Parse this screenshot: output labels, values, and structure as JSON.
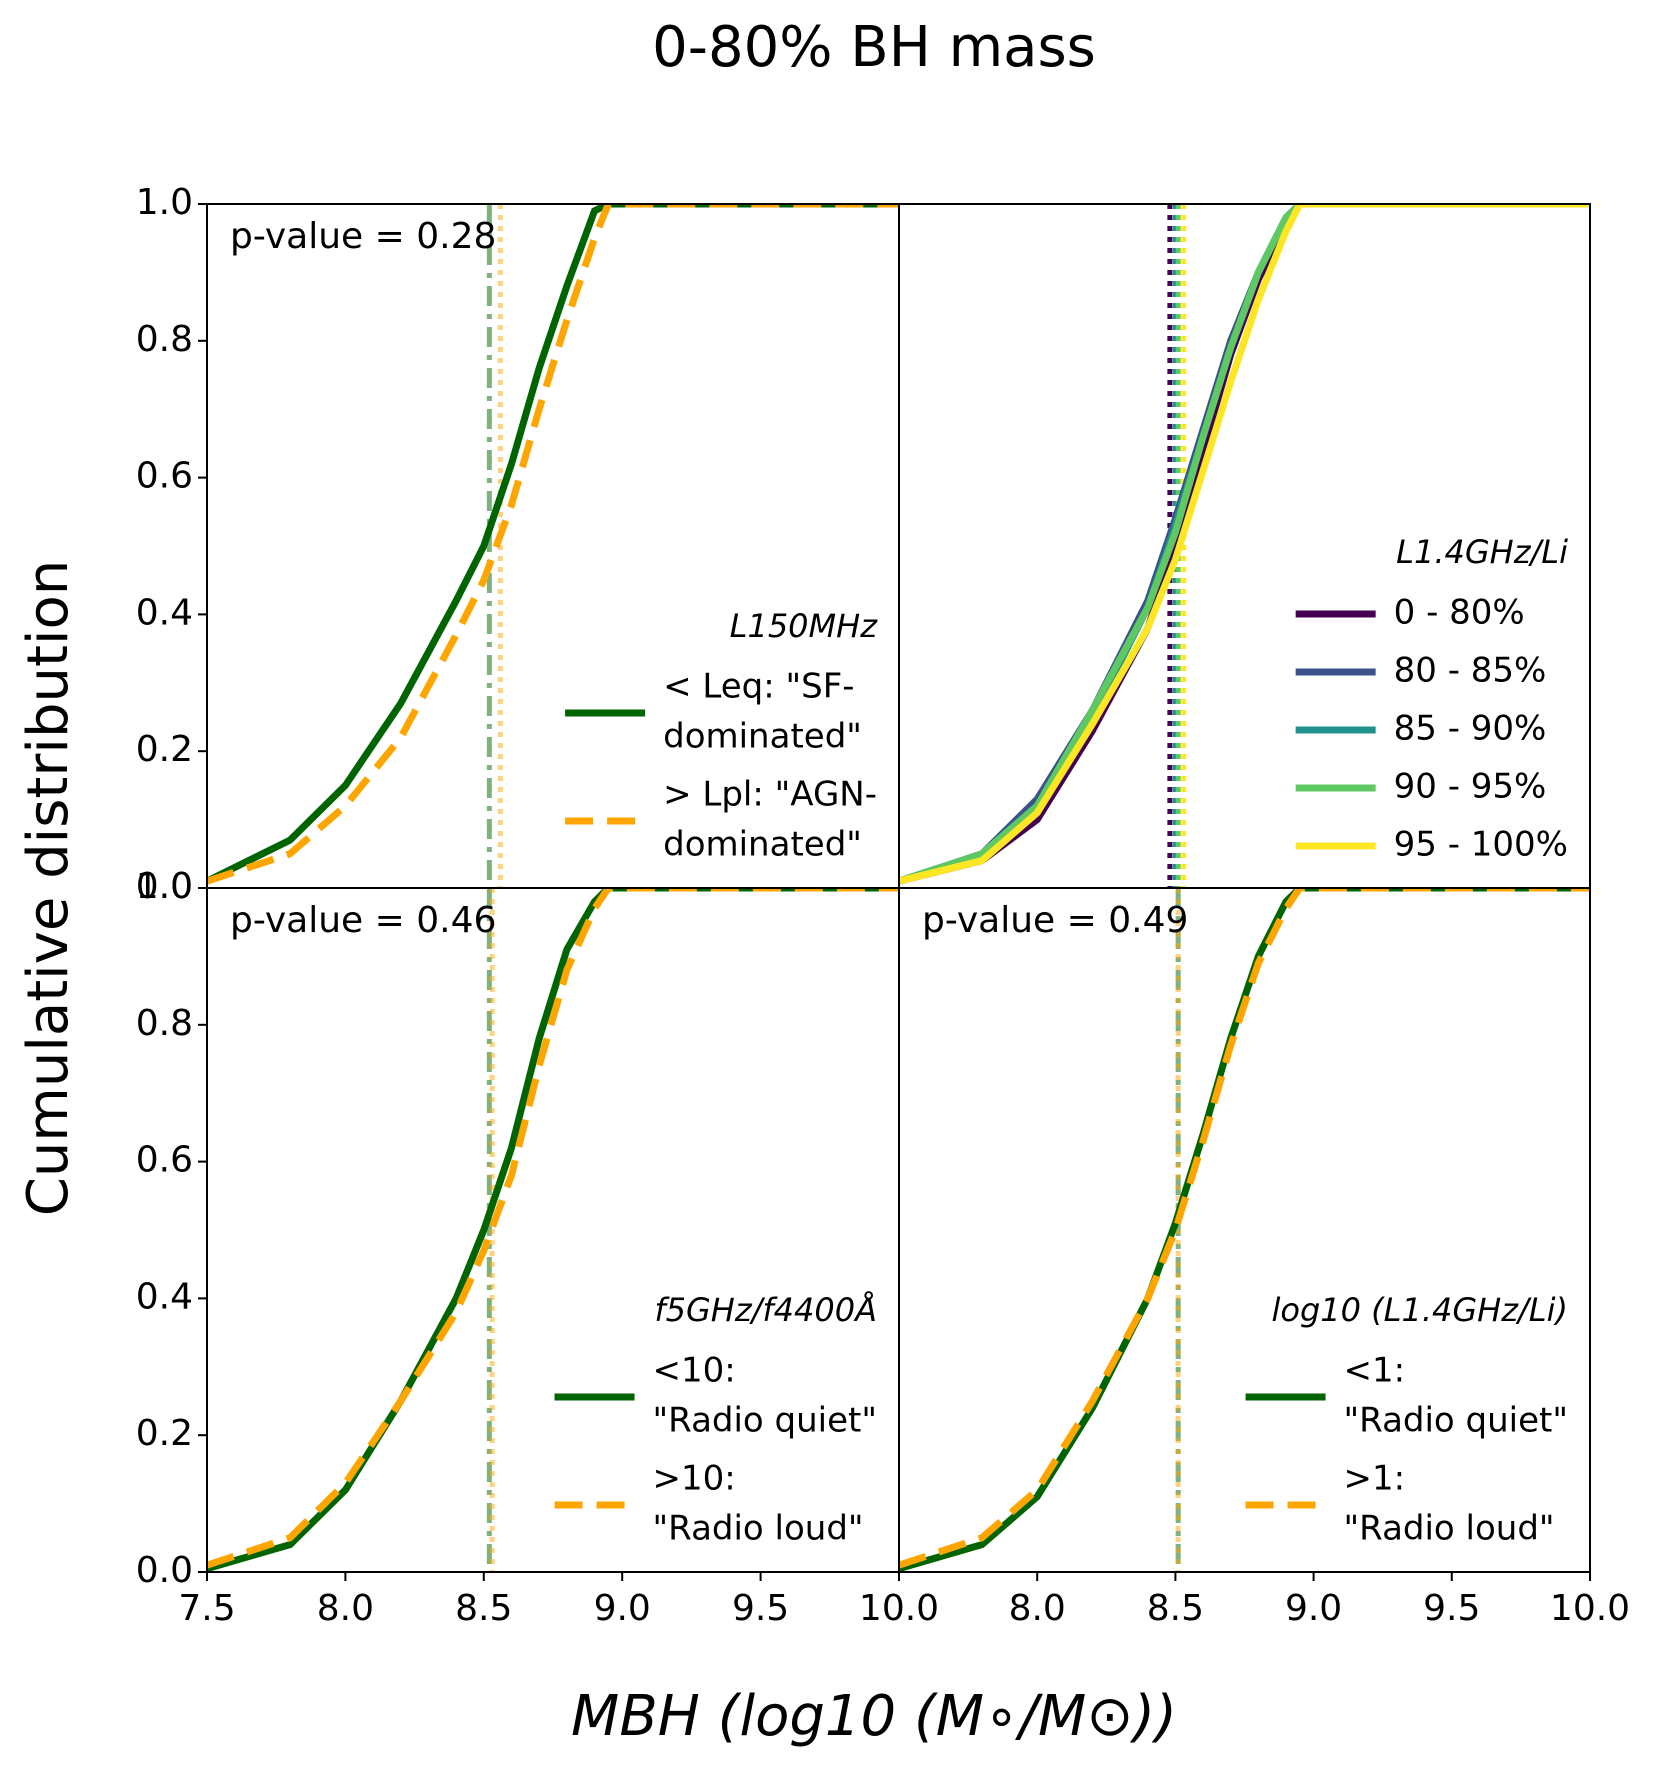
{
  "figure": {
    "title": "0-80% BH mass",
    "xlabel": "MBH (log10 (M∘/M⊙))",
    "ylabel": "Cumulative distribution"
  },
  "chart_data": [
    {
      "type": "line",
      "panel": "top-left",
      "annotation": "p-value = 0.28",
      "legend_title": "L150MHz",
      "legend": "lower right",
      "x": [
        7.5,
        7.8,
        8.0,
        8.2,
        8.4,
        8.5,
        8.6,
        8.7,
        8.8,
        8.9,
        8.95,
        10.0
      ],
      "xlim": [
        7.5,
        10.0
      ],
      "ylim": [
        0,
        1
      ],
      "yticks": [
        {
          "value": 0,
          "label": "0.0"
        },
        0.2,
        0.4,
        0.6,
        0.8,
        {
          "value": 1,
          "label": "1.0"
        }
      ],
      "series": [
        {
          "name": [
            "< Leq: \"SF-",
            "dominated\""
          ],
          "color": "#006400",
          "style": "solid",
          "values": [
            0.01,
            0.07,
            0.15,
            0.27,
            0.42,
            0.5,
            0.62,
            0.76,
            0.88,
            0.99,
            1.0,
            1.0
          ]
        },
        {
          "name": [
            "> Lpl: \"AGN-",
            "dominated\""
          ],
          "color": "#ffa500",
          "style": "dashed",
          "values": [
            0.01,
            0.05,
            0.12,
            0.22,
            0.37,
            0.45,
            0.56,
            0.7,
            0.83,
            0.95,
            1.0,
            1.0
          ]
        }
      ],
      "vlines": [
        {
          "value": 8.52,
          "color": "#006400",
          "style": "dashdot",
          "alpha": 0.5
        },
        {
          "value": 8.56,
          "color": "#ffa500",
          "style": "dotted",
          "alpha": 0.5
        }
      ]
    },
    {
      "type": "line",
      "panel": "top-right",
      "legend_title": "L1.4GHz/Li",
      "legend": "lower right",
      "x": [
        7.5,
        7.8,
        8.0,
        8.2,
        8.4,
        8.5,
        8.6,
        8.7,
        8.8,
        8.9,
        8.95,
        10.0
      ],
      "xlim": [
        7.5,
        10.0
      ],
      "ylim": [
        0,
        1
      ],
      "series": [
        {
          "name": [
            "0 - 80%"
          ],
          "color": "#440154",
          "style": "solid",
          "values": [
            0.01,
            0.04,
            0.1,
            0.23,
            0.38,
            0.5,
            0.64,
            0.78,
            0.89,
            0.97,
            1.0,
            1.0
          ]
        },
        {
          "name": [
            "80 - 85%"
          ],
          "color": "#3b528b",
          "style": "solid",
          "values": [
            0.01,
            0.05,
            0.13,
            0.26,
            0.42,
            0.54,
            0.67,
            0.8,
            0.9,
            0.98,
            1.0,
            1.0
          ]
        },
        {
          "name": [
            "85 - 90%"
          ],
          "color": "#21918c",
          "style": "solid",
          "values": [
            0.01,
            0.05,
            0.12,
            0.25,
            0.41,
            0.53,
            0.66,
            0.79,
            0.9,
            0.98,
            1.0,
            1.0
          ]
        },
        {
          "name": [
            "90 - 95%"
          ],
          "color": "#5ec962",
          "style": "solid",
          "values": [
            0.01,
            0.05,
            0.12,
            0.26,
            0.41,
            0.52,
            0.66,
            0.79,
            0.9,
            0.98,
            1.0,
            1.0
          ]
        },
        {
          "name": [
            "95 - 100%"
          ],
          "color": "#fde725",
          "style": "solid",
          "values": [
            0.01,
            0.04,
            0.11,
            0.24,
            0.38,
            0.48,
            0.61,
            0.74,
            0.86,
            0.96,
            1.0,
            1.0
          ]
        }
      ],
      "vlines": [
        {
          "value": 8.48,
          "color": "#440154",
          "style": "dotted",
          "alpha": 1
        },
        {
          "value": 8.5,
          "color": "#3b528b",
          "style": "dotted",
          "alpha": 1
        },
        {
          "value": 8.5,
          "color": "#21918c",
          "style": "dotted",
          "alpha": 1
        },
        {
          "value": 8.51,
          "color": "#5ec962",
          "style": "dotted",
          "alpha": 1
        },
        {
          "value": 8.53,
          "color": "#fde725",
          "style": "dotted",
          "alpha": 1
        }
      ]
    },
    {
      "type": "line",
      "panel": "bottom-left",
      "annotation": "p-value = 0.46",
      "legend_title": "f5GHz/f4400Å",
      "legend": "lower right",
      "x": [
        7.5,
        7.8,
        8.0,
        8.2,
        8.4,
        8.5,
        8.6,
        8.7,
        8.8,
        8.9,
        8.95,
        10.0
      ],
      "xlim": [
        7.5,
        10.0
      ],
      "ylim": [
        0,
        1
      ],
      "xticks": [
        7.5,
        {
          "value": 8,
          "label": "8.0"
        },
        8.5,
        {
          "value": 9,
          "label": "9.0"
        },
        9.5,
        {
          "value": 10,
          "label": "10.0"
        }
      ],
      "yticks": [
        {
          "value": 0,
          "label": "0.0"
        },
        0.2,
        0.4,
        0.6,
        0.8,
        {
          "value": 1,
          "label": "1.0"
        }
      ],
      "series": [
        {
          "name": [
            "<10:",
            "\"Radio quiet\""
          ],
          "color": "#006400",
          "style": "solid",
          "values": [
            0.005,
            0.04,
            0.12,
            0.25,
            0.4,
            0.5,
            0.62,
            0.78,
            0.91,
            0.98,
            1.0,
            1.0
          ]
        },
        {
          "name": [
            ">10:",
            "\"Radio loud\""
          ],
          "color": "#ffa500",
          "style": "dashed",
          "values": [
            0.01,
            0.05,
            0.13,
            0.25,
            0.38,
            0.47,
            0.58,
            0.74,
            0.88,
            0.97,
            1.0,
            1.0
          ]
        }
      ],
      "vlines": [
        {
          "value": 8.52,
          "color": "#006400",
          "style": "dashdot",
          "alpha": 0.5
        },
        {
          "value": 8.53,
          "color": "#ffa500",
          "style": "dotted",
          "alpha": 0.5
        }
      ]
    },
    {
      "type": "line",
      "panel": "bottom-right",
      "annotation": "p-value = 0.49",
      "legend_title": "log10 (L1.4GHz/Li)",
      "legend": "lower right",
      "x": [
        7.5,
        7.8,
        8.0,
        8.2,
        8.4,
        8.5,
        8.6,
        8.7,
        8.8,
        8.9,
        8.95,
        10.0
      ],
      "xlim": [
        7.5,
        10.0
      ],
      "ylim": [
        0,
        1
      ],
      "xticks": [
        {
          "value": 8,
          "label": "8.0"
        },
        8.5,
        {
          "value": 9,
          "label": "9.0"
        },
        9.5,
        {
          "value": 10,
          "label": "10.0"
        }
      ],
      "series": [
        {
          "name": [
            "<1:",
            "\"Radio quiet\""
          ],
          "color": "#006400",
          "style": "solid",
          "values": [
            0.005,
            0.04,
            0.11,
            0.24,
            0.4,
            0.51,
            0.64,
            0.78,
            0.9,
            0.98,
            1.0,
            1.0
          ]
        },
        {
          "name": [
            ">1:",
            "\"Radio loud\""
          ],
          "color": "#ffa500",
          "style": "dashed",
          "values": [
            0.01,
            0.05,
            0.12,
            0.25,
            0.4,
            0.5,
            0.63,
            0.77,
            0.89,
            0.97,
            1.0,
            1.0
          ]
        }
      ],
      "vlines": [
        {
          "value": 8.51,
          "color": "#006400",
          "style": "dashdot",
          "alpha": 0.5
        },
        {
          "value": 8.51,
          "color": "#ffa500",
          "style": "dotted",
          "alpha": 0.5
        }
      ]
    }
  ]
}
